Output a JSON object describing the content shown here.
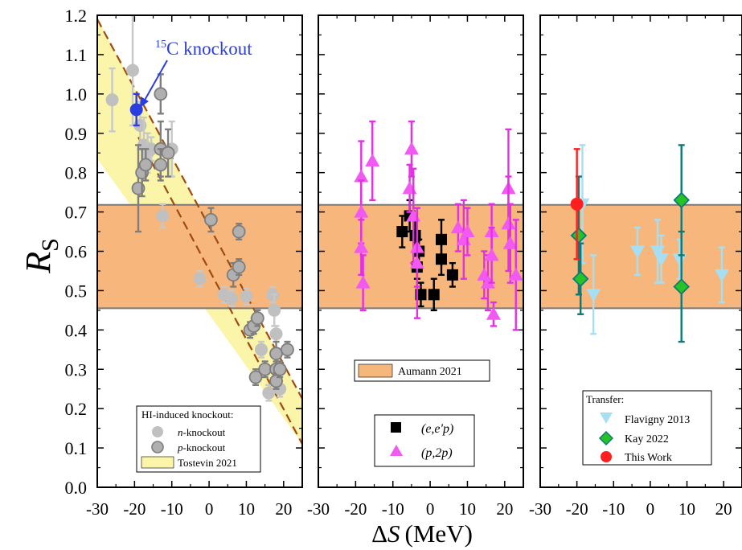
{
  "chart_data": {
    "type": "scatter",
    "xlabel": "ΔS (MeV)",
    "ylabel": "R",
    "ylabel_sub": "S",
    "ylim": [
      0.0,
      1.2
    ],
    "yticks": [
      0.0,
      0.1,
      0.2,
      0.3,
      0.4,
      0.5,
      0.6,
      0.7,
      0.8,
      0.9,
      1.0,
      1.1,
      1.2
    ],
    "xticks": [
      -30,
      -20,
      -10,
      0,
      10,
      20
    ],
    "aumann_band": {
      "label": "Aumann 2021",
      "ymin": 0.455,
      "ymax": 0.718,
      "color": "#f7b77c"
    },
    "panels": [
      {
        "id": "hi-knockout",
        "xlim": [
          -30,
          25
        ],
        "legend_title": "HI-induced knockout:",
        "tostevin_band": {
          "label": "Tostevin 2021",
          "color": "#fbf5a9",
          "upper": [
            [
              -30,
              1.19
            ],
            [
              25,
              0.225
            ]
          ],
          "lower": [
            [
              -30,
              0.835
            ],
            [
              25,
              0.11
            ]
          ]
        },
        "dashed_lines": [
          [
            [
              -30,
              1.19
            ],
            [
              25,
              0.225
            ]
          ],
          [
            [
              -19,
              0.89
            ],
            [
              25,
              0.11
            ]
          ]
        ],
        "annotation": {
          "sup": "15",
          "text": "C knockout",
          "color": "#2b3fe0",
          "x": -19.5,
          "y": 0.96
        },
        "series": [
          {
            "name": "n-knockout",
            "marker": "circle",
            "color": "#c0c0c0",
            "errcolor": "#c8c8c8",
            "points": [
              [
                -26,
                0.985,
                0.08,
                0.08
              ],
              [
                -20.5,
                1.06,
                0.14,
                0.14
              ],
              [
                -18.5,
                0.92,
                0.06,
                0.06
              ],
              [
                -17.5,
                0.87,
                0.07,
                0.07
              ],
              [
                -16.5,
                0.85,
                0.05,
                0.05
              ],
              [
                -15.5,
                0.86,
                0.03,
                0.03
              ],
              [
                -12.5,
                0.69,
                0.03,
                0.03
              ],
              [
                -10,
                0.86,
                0.07,
                0.07
              ],
              [
                -2.5,
                0.53,
                0.02,
                0.02
              ],
              [
                4,
                0.49,
                0.02,
                0.02
              ],
              [
                6,
                0.48,
                0.02,
                0.02
              ],
              [
                10,
                0.485,
                0.02,
                0.02
              ],
              [
                14,
                0.35,
                0.02,
                0.02
              ],
              [
                16,
                0.24,
                0.02,
                0.02
              ],
              [
                17,
                0.49,
                0.02,
                0.02
              ],
              [
                17.5,
                0.45,
                0.04,
                0.04
              ],
              [
                18,
                0.39,
                0.02,
                0.02
              ],
              [
                19,
                0.25,
                0.02,
                0.02
              ]
            ]
          },
          {
            "name": "p-knockout",
            "marker": "circle-ring",
            "color": "#b0b0b0",
            "errcolor": "#7e7e7e",
            "points": [
              [
                -19,
                0.76,
                0.11,
                0.11
              ],
              [
                -18,
                0.8,
                0.06,
                0.06
              ],
              [
                -17,
                0.82,
                0.04,
                0.04
              ],
              [
                -13,
                1.0,
                0.05,
                0.05
              ],
              [
                -13,
                0.86,
                0.07,
                0.07
              ],
              [
                -13,
                0.82,
                0.04,
                0.04
              ],
              [
                -11,
                0.85,
                0.06,
                0.06
              ],
              [
                0.5,
                0.68,
                0.03,
                0.03
              ],
              [
                6.5,
                0.54,
                0.03,
                0.03
              ],
              [
                8,
                0.65,
                0.02,
                0.02
              ],
              [
                8,
                0.56,
                0.02,
                0.02
              ],
              [
                11,
                0.4,
                0.02,
                0.02
              ],
              [
                12,
                0.41,
                0.02,
                0.02
              ],
              [
                12.5,
                0.28,
                0.02,
                0.02
              ],
              [
                13,
                0.43,
                0.02,
                0.02
              ],
              [
                15,
                0.3,
                0.02,
                0.02
              ],
              [
                18,
                0.34,
                0.03,
                0.03
              ],
              [
                18,
                0.3,
                0.02,
                0.02
              ],
              [
                18,
                0.27,
                0.02,
                0.02
              ],
              [
                19,
                0.3,
                0.02,
                0.02
              ],
              [
                21,
                0.35,
                0.02,
                0.02
              ]
            ]
          },
          {
            "name": "15C knockout",
            "marker": "circle",
            "color": "#2b3fe0",
            "errcolor": "#2b3fe0",
            "points": [
              [
                -19.5,
                0.96,
                0.04,
                0.04
              ]
            ]
          }
        ]
      },
      {
        "id": "ee-p2p",
        "xlim": [
          -30,
          25
        ],
        "series": [
          {
            "name": "(e,e'p)",
            "marker": "square",
            "color": "#000000",
            "errcolor": "#000000",
            "points": [
              [
                -7.5,
                0.65,
                0.04,
                0.04
              ],
              [
                -5.5,
                0.69,
                0.04,
                0.04
              ],
              [
                -4,
                0.64,
                0.04,
                0.04
              ],
              [
                -3.5,
                0.56,
                0.03,
                0.03
              ],
              [
                -3,
                0.6,
                0.03,
                0.03
              ],
              [
                -2.5,
                0.49,
                0.03,
                0.03
              ],
              [
                1,
                0.49,
                0.04,
                0.04
              ],
              [
                3,
                0.63,
                0.05,
                0.05
              ],
              [
                3,
                0.58,
                0.04,
                0.04
              ],
              [
                6,
                0.54,
                0.03,
                0.03
              ]
            ]
          },
          {
            "name": "(p,2p)",
            "marker": "triangle-up",
            "color": "#f258f2",
            "errcolor": "#e430e4",
            "points": [
              [
                -18.5,
                0.79,
                0.09,
                0.09
              ],
              [
                -18.5,
                0.7,
                0.08,
                0.08
              ],
              [
                -18.5,
                0.61,
                0.07,
                0.07
              ],
              [
                -18,
                0.52,
                0.07,
                0.07
              ],
              [
                -15.5,
                0.83,
                0.1,
                0.1
              ],
              [
                -5,
                0.86,
                0.07,
                0.07
              ],
              [
                -5.5,
                0.76,
                0.06,
                0.06
              ],
              [
                -4.5,
                0.69,
                0.12,
                0.12
              ],
              [
                -3.5,
                0.61,
                0.1,
                0.1
              ],
              [
                -3.5,
                0.57,
                0.14,
                0.14
              ],
              [
                7.5,
                0.66,
                0.06,
                0.06
              ],
              [
                9,
                0.63,
                0.1,
                0.1
              ],
              [
                10,
                0.65,
                0.06,
                0.06
              ],
              [
                14.5,
                0.54,
                0.06,
                0.06
              ],
              [
                15.5,
                0.52,
                0.07,
                0.07
              ],
              [
                16.5,
                0.65,
                0.07,
                0.07
              ],
              [
                16.5,
                0.59,
                0.07,
                0.07
              ],
              [
                17,
                0.44,
                0.03,
                0.03
              ],
              [
                21,
                0.76,
                0.15,
                0.15
              ],
              [
                21,
                0.67,
                0.12,
                0.12
              ],
              [
                21.5,
                0.62,
                0.1,
                0.1
              ],
              [
                23,
                0.54,
                0.14,
                0.14
              ]
            ]
          }
        ]
      },
      {
        "id": "transfer",
        "xlim": [
          -30,
          25
        ],
        "legend_title": "Transfer:",
        "series": [
          {
            "name": "Flavigny 2013",
            "marker": "triangle-down",
            "color": "#a6dff4",
            "errcolor": "#a6dff4",
            "points": [
              [
                -18.5,
                0.72,
                0.15,
                0.15
              ],
              [
                -15.5,
                0.49,
                0.1,
                0.1
              ],
              [
                -3.5,
                0.6,
                0.06,
                0.06
              ],
              [
                2,
                0.6,
                0.08,
                0.08
              ],
              [
                3,
                0.58,
                0.06,
                0.06
              ],
              [
                8,
                0.58,
                0.05,
                0.05
              ],
              [
                19.5,
                0.54,
                0.07,
                0.07
              ]
            ]
          },
          {
            "name": "Kay 2022",
            "marker": "diamond",
            "color": "#26c326",
            "errcolor": "#0a7a7a",
            "points": [
              [
                -19.5,
                0.64,
                0.15,
                0.15
              ],
              [
                -19,
                0.53,
                0.09,
                0.09
              ],
              [
                8.5,
                0.73,
                0.14,
                0.14
              ],
              [
                8.5,
                0.51,
                0.14,
                0.14
              ]
            ]
          },
          {
            "name": "This Work",
            "marker": "circle",
            "color": "#ff1f1f",
            "errcolor": "#ff1f1f",
            "points": [
              [
                -20,
                0.72,
                0.14,
                0.14
              ]
            ]
          }
        ]
      }
    ]
  },
  "legends": {
    "hi": {
      "title": "HI-induced knockout:",
      "n": "-knockout",
      "n_it": "n",
      "p": "-knockout",
      "p_it": "p",
      "tostevin": "Tostevin 2021"
    },
    "aumann": "Aumann 2021",
    "mid": {
      "eep": "(e,e'p)",
      "p2p": "(p,2p)"
    },
    "transfer": {
      "title": "Transfer:",
      "flavigny": "Flavigny 2013",
      "kay": "Kay 2022",
      "thiswork": "This Work"
    }
  },
  "annotation": {
    "sup": "15",
    "text": "C knockout"
  },
  "axis_labels": {
    "x_delta": "Δ",
    "x_s": "S",
    "x_unit": "(MeV)",
    "y_main": "R",
    "y_sub": "S"
  }
}
